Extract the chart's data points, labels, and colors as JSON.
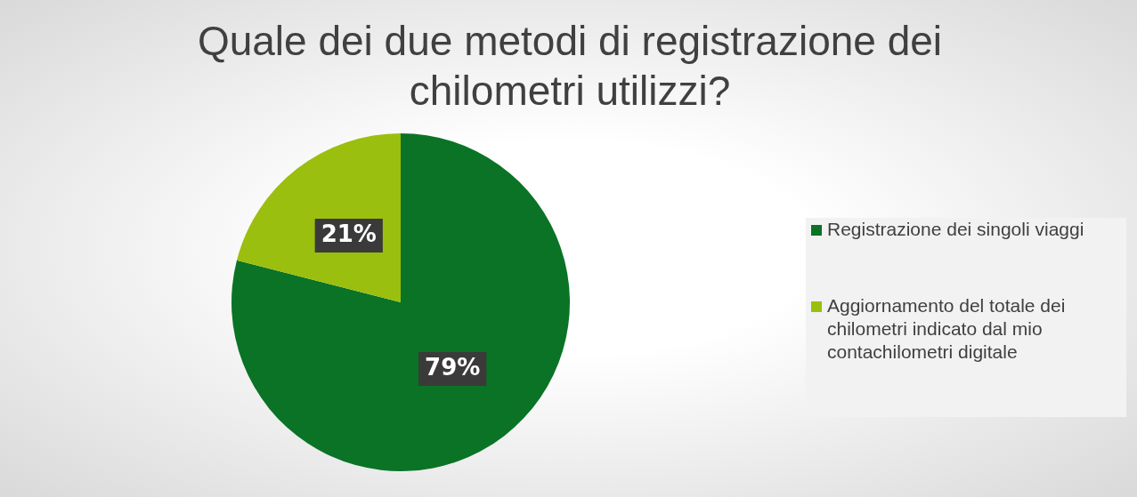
{
  "chart_data": {
    "type": "pie",
    "title": "Quale dei due metodi di registrazione dei chilometri utilizzi?",
    "categories": [
      "Registrazione dei singoli viaggi",
      "Aggiornamento del totale dei chilometri indicato dal mio contachilometri digitale"
    ],
    "values": [
      79,
      21
    ],
    "colors": [
      "#0a7326",
      "#9bbf0e"
    ],
    "value_labels": [
      "79%",
      "21%"
    ],
    "legend": "right"
  }
}
